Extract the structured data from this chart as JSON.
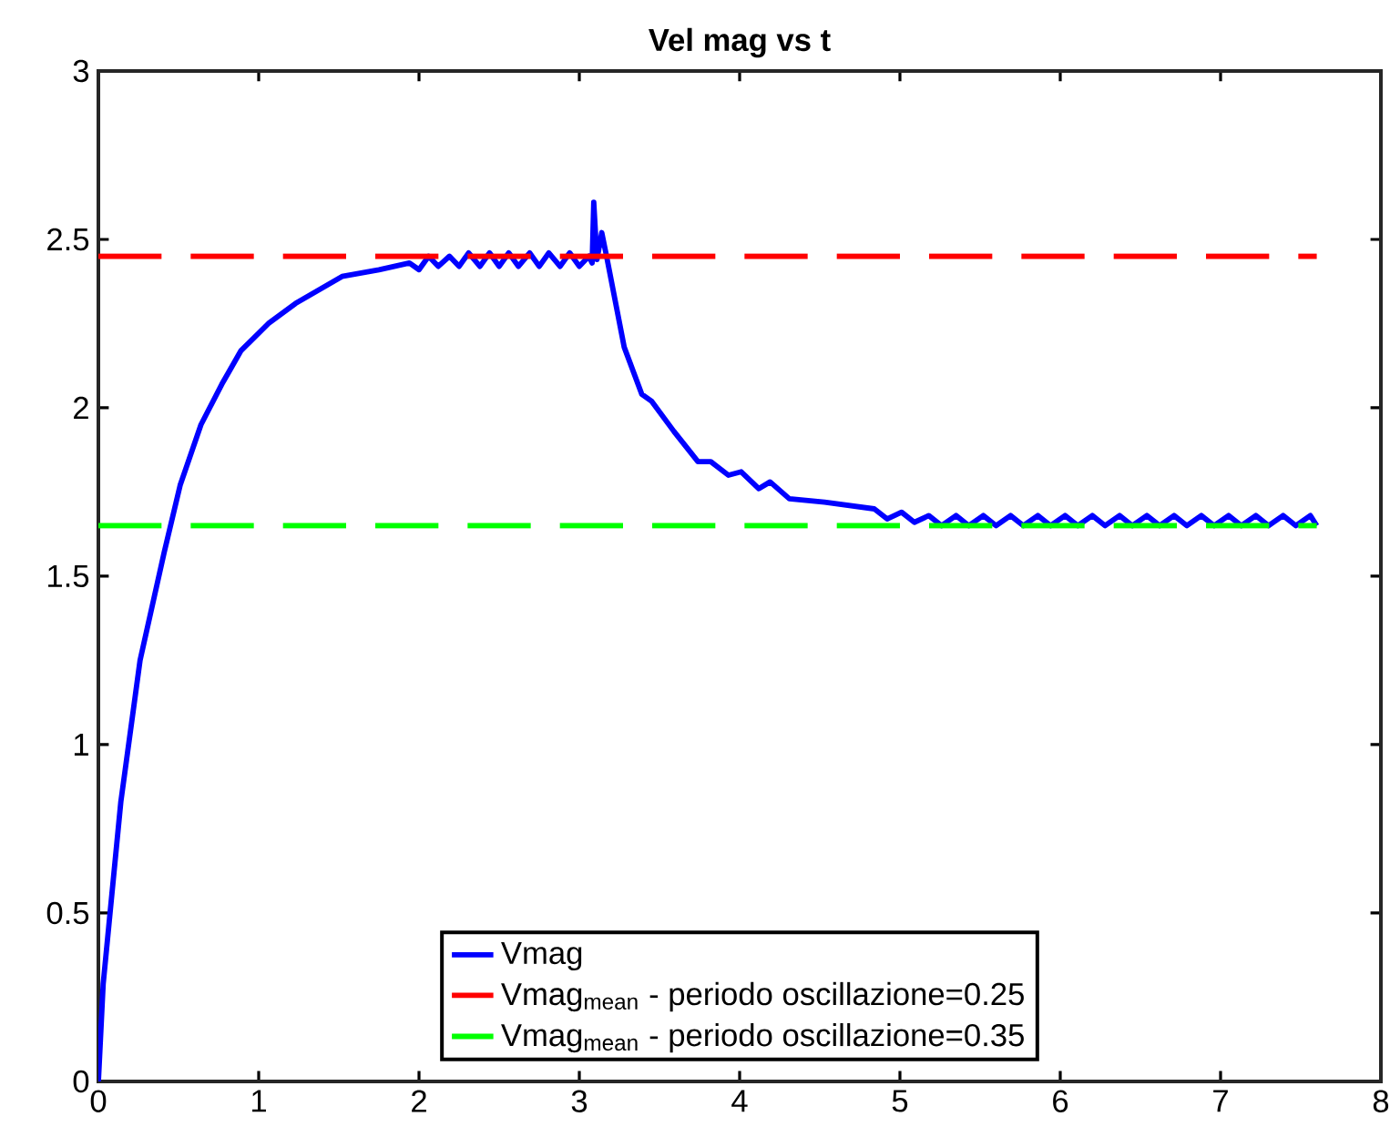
{
  "chart_data": {
    "type": "line",
    "title": "Vel mag vs t",
    "xlim": [
      0,
      8
    ],
    "xticks": [
      0,
      1,
      2,
      3,
      4,
      5,
      6,
      7,
      8
    ],
    "ylim": [
      0,
      3
    ],
    "yticks": [
      0,
      0.5,
      1,
      1.5,
      2,
      2.5,
      3
    ],
    "grid": false,
    "legend": "bottom",
    "series": [
      {
        "name": "Vmag",
        "color": "#0000ff",
        "line_style": "solid",
        "x": [
          0,
          0.03,
          0.14,
          0.26,
          0.41,
          0.51,
          0.64,
          0.77,
          0.89,
          1.06,
          1.23,
          1.52,
          1.75,
          1.94,
          2.0,
          2.06,
          2.12,
          2.19,
          2.25,
          2.31,
          2.38,
          2.44,
          2.5,
          2.56,
          2.62,
          2.69,
          2.75,
          2.81,
          2.88,
          2.94,
          3.0,
          3.06,
          3.08,
          3.09,
          3.11,
          3.14,
          3.17,
          3.28,
          3.39,
          3.45,
          3.59,
          3.74,
          3.82,
          3.93,
          4.01,
          4.12,
          4.19,
          4.31,
          4.53,
          4.84,
          4.92,
          5.01,
          5.09,
          5.18,
          5.26,
          5.35,
          5.43,
          5.52,
          5.6,
          5.69,
          5.77,
          5.86,
          5.94,
          6.03,
          6.11,
          6.2,
          6.28,
          6.37,
          6.45,
          6.54,
          6.62,
          6.71,
          6.79,
          6.88,
          6.96,
          7.05,
          7.13,
          7.22,
          7.3,
          7.39,
          7.47,
          7.56,
          7.6
        ],
        "values": [
          0,
          0.29,
          0.83,
          1.25,
          1.57,
          1.77,
          1.95,
          2.07,
          2.17,
          2.25,
          2.31,
          2.39,
          2.41,
          2.43,
          2.41,
          2.45,
          2.42,
          2.45,
          2.42,
          2.46,
          2.42,
          2.46,
          2.42,
          2.46,
          2.42,
          2.46,
          2.42,
          2.46,
          2.42,
          2.46,
          2.42,
          2.45,
          2.43,
          2.61,
          2.44,
          2.52,
          2.45,
          2.18,
          2.04,
          2.02,
          1.93,
          1.84,
          1.84,
          1.8,
          1.81,
          1.76,
          1.78,
          1.73,
          1.72,
          1.7,
          1.67,
          1.69,
          1.66,
          1.68,
          1.65,
          1.68,
          1.65,
          1.68,
          1.65,
          1.68,
          1.65,
          1.68,
          1.65,
          1.68,
          1.65,
          1.68,
          1.65,
          1.68,
          1.65,
          1.68,
          1.65,
          1.68,
          1.65,
          1.68,
          1.65,
          1.68,
          1.65,
          1.68,
          1.65,
          1.68,
          1.65,
          1.68,
          1.65
        ]
      },
      {
        "name": "Vmag$_{mean}$ - periodo oscillazione=0.25",
        "color": "#ff0000",
        "line_style": "dashed",
        "x": [
          0,
          7.6
        ],
        "values": [
          2.45,
          2.45
        ]
      },
      {
        "name": "Vmag$_{mean}$ - periodo oscillazione=0.35",
        "color": "#00ff00",
        "line_style": "dashed",
        "x": [
          0,
          7.6
        ],
        "values": [
          1.65,
          1.65
        ]
      }
    ]
  }
}
